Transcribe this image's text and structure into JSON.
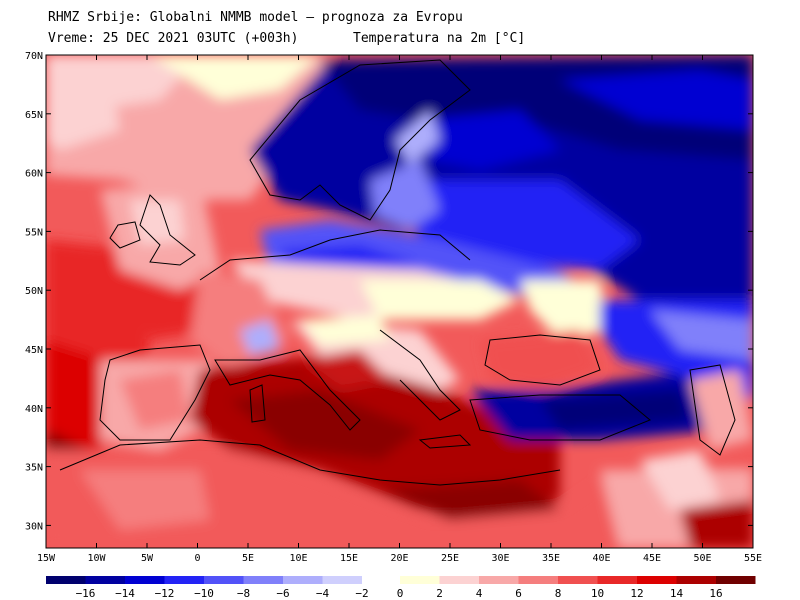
{
  "header": {
    "line1": "RHMZ Srbije: Globalni NMMB model — prognoza za Evropu",
    "line2": "Vreme: 25 DEC 2021 03UTC (+003h)",
    "variable": "Temperatura na 2m [°C]"
  },
  "axes": {
    "lat_labels": [
      "70N",
      "65N",
      "60N",
      "55N",
      "50N",
      "45N",
      "40N",
      "35N",
      "30N"
    ],
    "lon_labels": [
      "15W",
      "10W",
      "5W",
      "0",
      "5E",
      "10E",
      "15E",
      "20E",
      "25E",
      "30E",
      "35E",
      "40E",
      "45E",
      "50E",
      "55E"
    ]
  },
  "colorbar": {
    "labels": [
      "−16",
      "−14",
      "−12",
      "−10",
      "−8",
      "−6",
      "−4",
      "−2",
      "0",
      "2",
      "4",
      "6",
      "8",
      "10",
      "12",
      "14",
      "16"
    ],
    "colors": [
      "#00006e",
      "#0000a0",
      "#0000d2",
      "#2323f5",
      "#5252f8",
      "#8080fa",
      "#aeaefc",
      "#cfcffd",
      "#ffffd8",
      "#fcd2d2",
      "#f8a8a8",
      "#f57e7e",
      "#f05050",
      "#e82828",
      "#dc0000",
      "#ac0000",
      "#700000"
    ]
  },
  "palette": {
    "ocean_warm": "#c40000",
    "deep_cold": "#000096",
    "mild": "#fbe0e0",
    "neutral": "#ffffd8"
  }
}
